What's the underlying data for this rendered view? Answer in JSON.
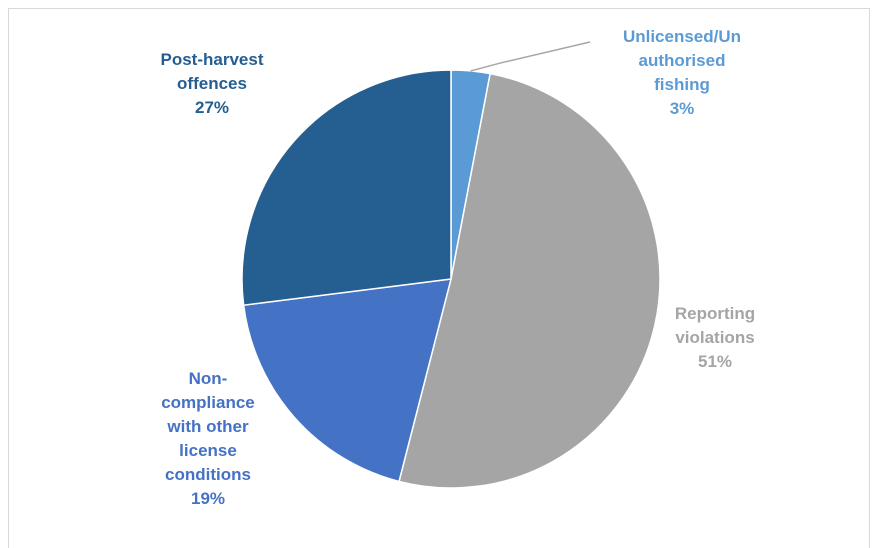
{
  "chart_data": {
    "type": "pie",
    "title": "",
    "slices": [
      {
        "label": "Unlicensed/Unauthorised fishing",
        "label_lines": [
          "Unlicensed/Un",
          "authorised",
          "fishing"
        ],
        "value": 3,
        "value_label": "3%",
        "color": "#5b9bd5"
      },
      {
        "label": "Reporting violations",
        "label_lines": [
          "Reporting",
          "violations"
        ],
        "value": 51,
        "value_label": "51%",
        "color": "#a5a5a5"
      },
      {
        "label": "Non-compliance with other license conditions",
        "label_lines": [
          "Non-",
          "compliance",
          "with other",
          "license",
          "conditions"
        ],
        "value": 19,
        "value_label": "19%",
        "color": "#4472c4"
      },
      {
        "label": "Post-harvest offences",
        "label_lines": [
          "Post-harvest",
          "offences"
        ],
        "value": 27,
        "value_label": "27%",
        "color": "#255e91"
      }
    ],
    "start_angle_deg": 0,
    "direction": "clockwise",
    "legend": "none",
    "label_colors": [
      "#5b9bd5",
      "#a5a5a5",
      "#4472c4",
      "#255e91"
    ]
  }
}
